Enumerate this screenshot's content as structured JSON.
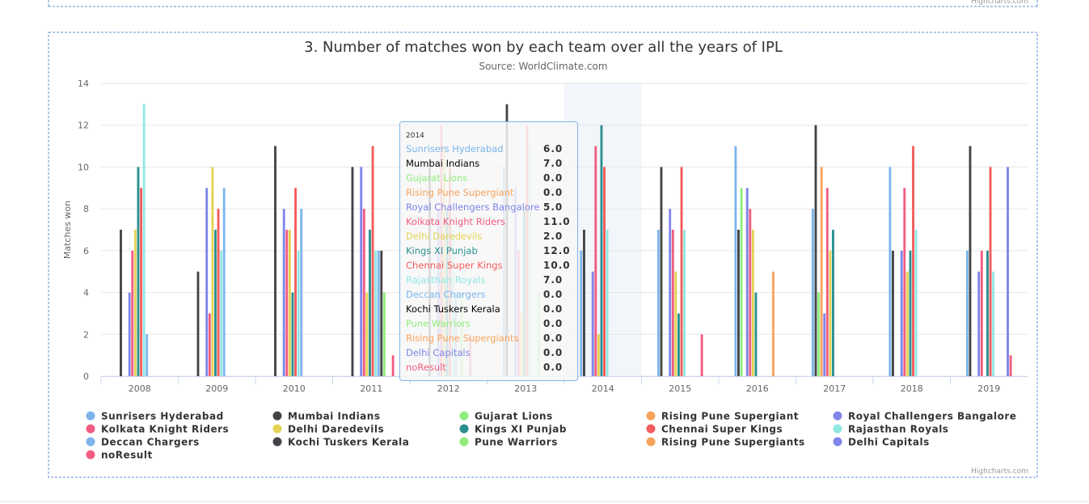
{
  "chart_data": {
    "type": "bar",
    "title": "3. Number of matches won by each team over all the years of IPL",
    "subtitle": "Source: WorldClimate.com",
    "y_label": "Matches won",
    "credits": "Highcharts.com",
    "categories": [
      "2008",
      "2009",
      "2010",
      "2011",
      "2012",
      "2013",
      "2014",
      "2015",
      "2016",
      "2017",
      "2018",
      "2019"
    ],
    "ylim": [
      0,
      14
    ],
    "yticks": [
      0,
      2,
      4,
      6,
      8,
      10,
      12,
      14
    ],
    "grid": true,
    "series": [
      {
        "name": "Sunrisers Hyderabad",
        "color": "#7cb5ec",
        "values": [
          0,
          0,
          0,
          0,
          0,
          10,
          6,
          7,
          11,
          8,
          10,
          6
        ]
      },
      {
        "name": "Mumbai Indians",
        "color": "#434348",
        "values": [
          7,
          5,
          11,
          10,
          10,
          13,
          7,
          10,
          7,
          12,
          6,
          11
        ]
      },
      {
        "name": "Gujarat Lions",
        "color": "#90ed7d",
        "values": [
          0,
          0,
          0,
          0,
          0,
          0,
          0,
          0,
          9,
          4,
          0,
          0
        ]
      },
      {
        "name": "Rising Pune Supergiant",
        "color": "#f7a35c",
        "values": [
          0,
          0,
          0,
          0,
          0,
          0,
          0,
          0,
          0,
          10,
          0,
          0
        ]
      },
      {
        "name": "Royal Challengers Bangalore",
        "color": "#8085e9",
        "values": [
          4,
          9,
          8,
          10,
          8,
          9,
          5,
          8,
          9,
          3,
          6,
          5
        ]
      },
      {
        "name": "Kolkata Knight Riders",
        "color": "#f15c80",
        "values": [
          6,
          3,
          7,
          8,
          12,
          6,
          11,
          7,
          8,
          9,
          9,
          6
        ]
      },
      {
        "name": "Delhi Daredevils",
        "color": "#e4d354",
        "values": [
          7,
          10,
          7,
          4,
          11,
          3,
          2,
          5,
          7,
          6,
          5,
          0
        ]
      },
      {
        "name": "Kings XI Punjab",
        "color": "#2b908f",
        "values": [
          10,
          7,
          4,
          7,
          8,
          8,
          12,
          3,
          4,
          7,
          6,
          6
        ]
      },
      {
        "name": "Chennai Super Kings",
        "color": "#f45b5b",
        "values": [
          9,
          8,
          9,
          11,
          10,
          12,
          10,
          10,
          0,
          0,
          11,
          10
        ]
      },
      {
        "name": "Rajasthan Royals",
        "color": "#91e8e1",
        "values": [
          13,
          6,
          6,
          6,
          7,
          11,
          7,
          7,
          0,
          0,
          7,
          5
        ]
      },
      {
        "name": "Deccan Chargers",
        "color": "#7cb5ec",
        "values": [
          2,
          9,
          8,
          6,
          4,
          0,
          0,
          0,
          0,
          0,
          0,
          0
        ]
      },
      {
        "name": "Kochi Tuskers Kerala",
        "color": "#434348",
        "values": [
          0,
          0,
          0,
          6,
          0,
          0,
          0,
          0,
          0,
          0,
          0,
          0
        ]
      },
      {
        "name": "Pune Warriors",
        "color": "#90ed7d",
        "values": [
          0,
          0,
          0,
          4,
          4,
          4,
          0,
          0,
          0,
          0,
          0,
          0
        ]
      },
      {
        "name": "Rising Pune Supergiants",
        "color": "#f7a35c",
        "values": [
          0,
          0,
          0,
          0,
          0,
          0,
          0,
          0,
          5,
          0,
          0,
          0
        ]
      },
      {
        "name": "Delhi Capitals",
        "color": "#8085e9",
        "values": [
          0,
          0,
          0,
          0,
          0,
          0,
          0,
          0,
          0,
          0,
          0,
          10
        ]
      },
      {
        "name": "noResult",
        "color": "#f15c80",
        "values": [
          0,
          0,
          0,
          1,
          2,
          0,
          0,
          2,
          0,
          0,
          0,
          1
        ]
      }
    ],
    "tooltip": {
      "title": "2014",
      "value_labels": [
        "6.0",
        "7.0",
        "0.0",
        "0.0",
        "5.0",
        "11.0",
        "2.0",
        "12.0",
        "10.0",
        "7.0",
        "0.0",
        "0.0",
        "0.0",
        "0.0",
        "0.0",
        "0.0"
      ]
    }
  }
}
